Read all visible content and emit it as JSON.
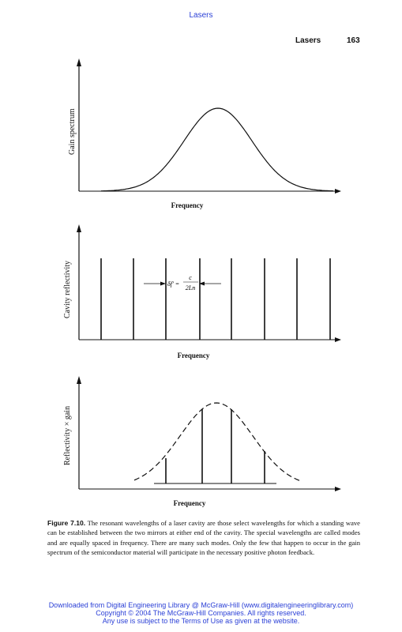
{
  "running_title": "Lasers",
  "header": {
    "title": "Lasers",
    "page_number": "163"
  },
  "panels": {
    "gain": {
      "ylabel": "Gain spectrum",
      "xlabel": "Frequency"
    },
    "cavity": {
      "ylabel": "Cavity reflectivity",
      "xlabel": "Frequency"
    },
    "product": {
      "ylabel": "Reflectivity × gain",
      "xlabel": "Frequency"
    }
  },
  "formula": {
    "lhs": "δf′ =",
    "numerator": "c",
    "denominator": "2Ln"
  },
  "caption": {
    "label": "Figure 7.10.",
    "text": "The resonant wavelengths of a laser cavity are those select wavelengths for which a standing wave can be established between the two mirrors at either end of the cavity. The special wavelengths are called modes and are equally spaced in frequency. There are many such modes. Only the few that happen to occur in the gain spectrum of the semiconductor material will participate in the necessary positive photon feedback."
  },
  "footer": {
    "line1": "Downloaded from Digital Engineering Library @ McGraw-Hill (www.digitalengineeringlibrary.com)",
    "line2": "Copyright © 2004 The McGraw-Hill Companies. All rights reserved.",
    "line3": "Any use is subject to the Terms of Use as given at the website."
  }
}
